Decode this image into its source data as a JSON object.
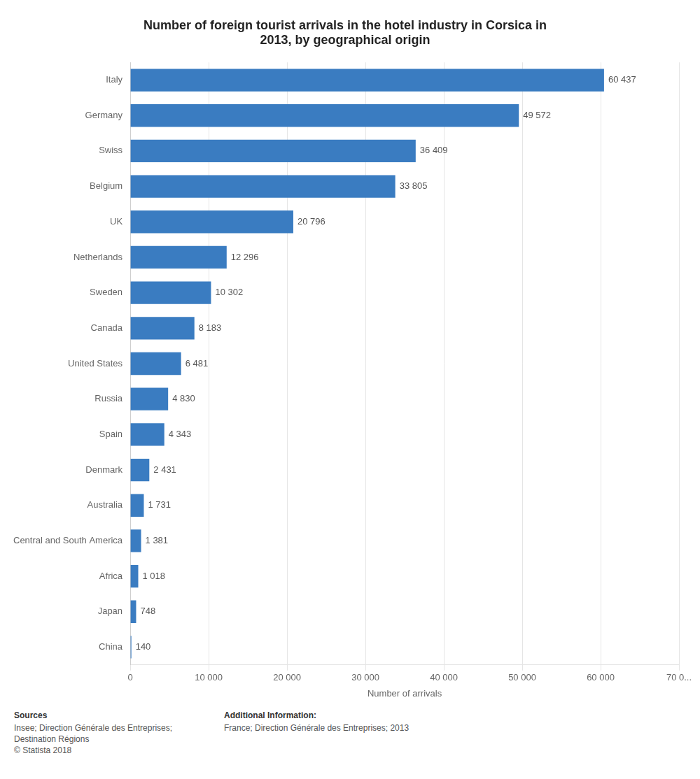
{
  "chart_data": {
    "type": "bar",
    "orientation": "horizontal",
    "title": "Number of foreign tourist arrivals in the hotel industry in Corsica in\n2013, by geographical origin",
    "categories": [
      "Italy",
      "Germany",
      "Swiss",
      "Belgium",
      "UK",
      "Netherlands",
      "Sweden",
      "Canada",
      "United States",
      "Russia",
      "Spain",
      "Denmark",
      "Australia",
      "Central and South America",
      "Africa",
      "Japan",
      "China"
    ],
    "values": [
      60437,
      49572,
      36409,
      33805,
      20796,
      12296,
      10302,
      8183,
      6481,
      4830,
      4343,
      2431,
      1731,
      1381,
      1018,
      748,
      140
    ],
    "value_labels": [
      "60 437",
      "49 572",
      "36 409",
      "33 805",
      "20 796",
      "12 296",
      "10 302",
      "8 183",
      "6 481",
      "4 830",
      "4 343",
      "2 431",
      "1 731",
      "1 381",
      "1 018",
      "748",
      "140"
    ],
    "data_labels": true,
    "color": "#3a7cc1",
    "xlabel": "Number of arrivals",
    "xlim": [
      0,
      70000
    ],
    "xticks": [
      0,
      {
        "value": 10000,
        "label": "10 000"
      },
      {
        "value": 20000,
        "label": "20 000"
      },
      {
        "value": 30000,
        "label": "30 000"
      },
      {
        "value": 40000,
        "label": "40 000"
      },
      {
        "value": 50000,
        "label": "50 000"
      },
      {
        "value": 60000,
        "label": "60 000"
      },
      {
        "value": 70000,
        "label": "70 0..."
      }
    ],
    "grid": true,
    "annotations": [
      "Sources",
      "Insee; Direction Générale des Entreprises;\nDestination Régions\n© Statista 2018",
      "Additional Information:",
      "France; Direction Générale des Entreprises; 2013"
    ]
  }
}
